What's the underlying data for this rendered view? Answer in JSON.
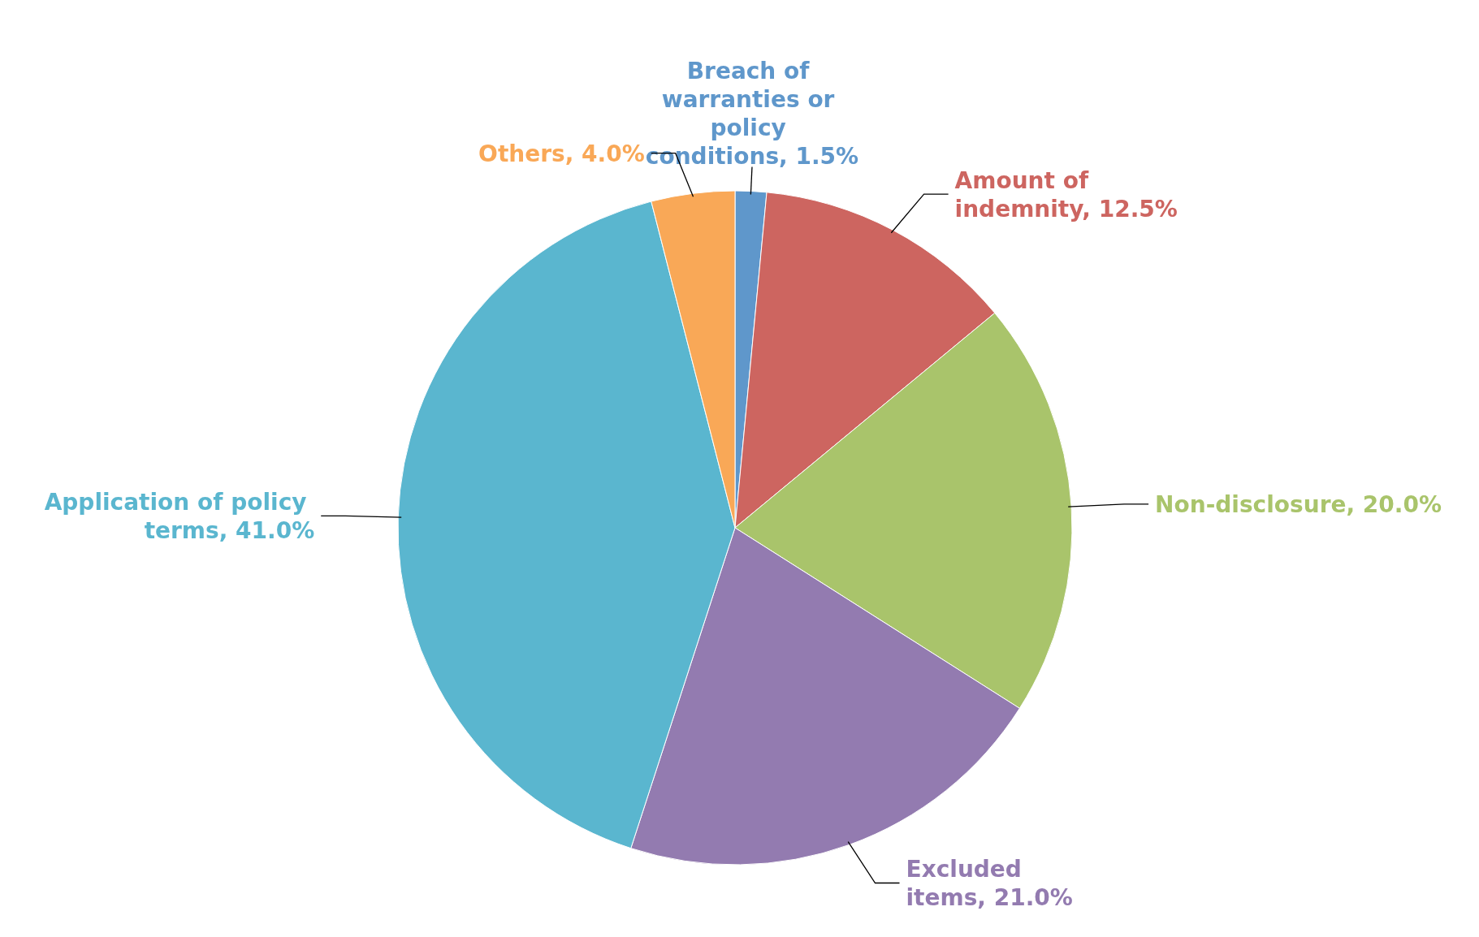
{
  "chart_data": {
    "type": "pie",
    "categories": [
      "Breach of warranties or policy conditions",
      "Amount of indemnity",
      "Non-disclosure",
      "Excluded items",
      "Application of policy terms",
      "Others"
    ],
    "value_labels": [
      "1.5%",
      "12.5%",
      "20.0%",
      "21.0%",
      "41.0%",
      "4.0%"
    ],
    "values": [
      1.5,
      12.5,
      20.0,
      21.0,
      41.0,
      4.0
    ],
    "colors": [
      "#5f97cb",
      "#cd6560",
      "#a9c46b",
      "#937bb0",
      "#5ab6cf",
      "#f9a857"
    ]
  }
}
